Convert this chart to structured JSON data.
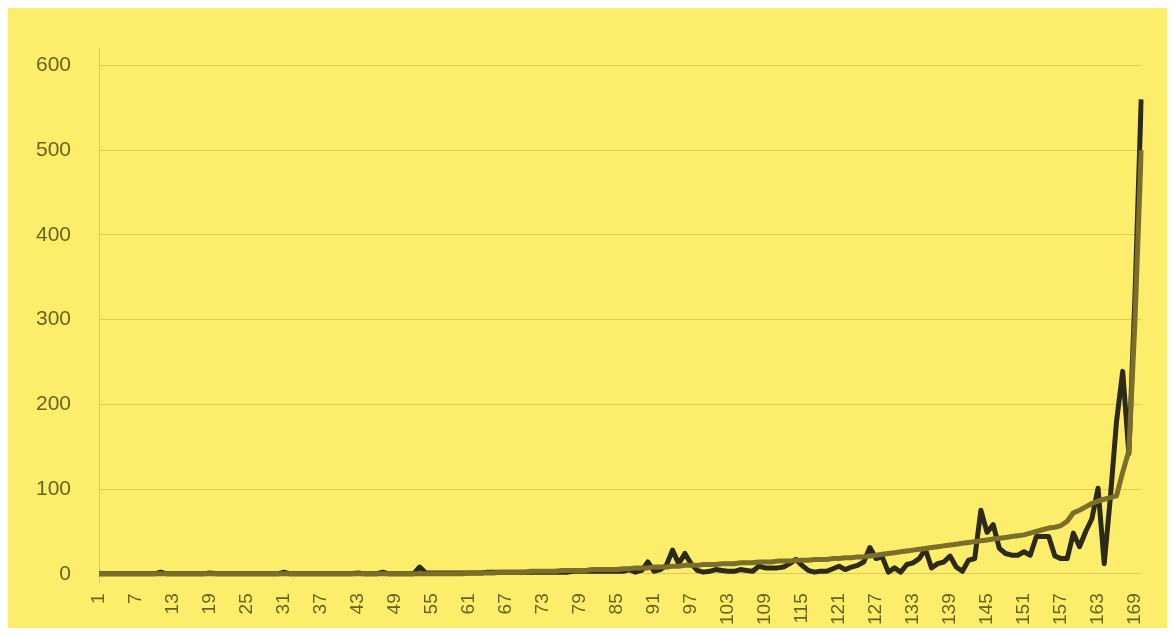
{
  "chart_data": {
    "type": "line",
    "categories": [
      "1",
      null,
      null,
      null,
      null,
      null,
      "7",
      null,
      null,
      null,
      null,
      null,
      "13",
      null,
      null,
      null,
      null,
      null,
      "19",
      null,
      null,
      null,
      null,
      null,
      "25",
      null,
      null,
      null,
      null,
      null,
      "31",
      null,
      null,
      null,
      null,
      null,
      "37",
      null,
      null,
      null,
      null,
      null,
      "43",
      null,
      null,
      null,
      null,
      null,
      "49",
      null,
      null,
      null,
      null,
      null,
      "55",
      null,
      null,
      null,
      null,
      null,
      "61",
      null,
      null,
      null,
      null,
      null,
      "67",
      null,
      null,
      null,
      null,
      null,
      "73",
      null,
      null,
      null,
      null,
      null,
      "79",
      null,
      null,
      null,
      null,
      null,
      "85",
      null,
      null,
      null,
      null,
      null,
      "91",
      null,
      null,
      null,
      null,
      null,
      "97",
      null,
      null,
      null,
      null,
      null,
      "103",
      null,
      null,
      null,
      null,
      null,
      "109",
      null,
      null,
      null,
      null,
      null,
      "115",
      null,
      null,
      null,
      null,
      null,
      "121",
      null,
      null,
      null,
      null,
      null,
      "127",
      null,
      null,
      null,
      null,
      null,
      "133",
      null,
      null,
      null,
      null,
      null,
      "139",
      null,
      null,
      null,
      null,
      null,
      "145",
      null,
      null,
      null,
      null,
      null,
      "151",
      null,
      null,
      null,
      null,
      null,
      "157",
      null,
      null,
      null,
      null,
      null,
      "163",
      null,
      null,
      null,
      null,
      null,
      "169",
      null
    ],
    "series": [
      {
        "color": "#2e2a1a",
        "values": [
          0,
          0,
          0,
          0,
          0,
          0,
          0,
          0,
          0,
          0,
          2,
          0,
          0,
          0,
          0,
          0,
          0,
          0,
          1,
          0,
          0,
          0,
          0,
          0,
          0,
          0,
          0,
          0,
          0,
          0,
          2,
          0,
          0,
          0,
          0,
          0,
          0,
          0,
          0,
          0,
          0,
          0,
          1,
          0,
          0,
          0,
          2,
          0,
          0,
          0,
          0,
          0,
          8,
          1,
          1,
          1,
          1,
          1,
          1,
          1,
          1,
          1,
          1,
          2,
          2,
          2,
          2,
          2,
          2,
          2,
          2,
          2,
          2,
          2,
          2,
          2,
          2,
          3,
          3,
          3,
          3,
          3,
          3,
          3,
          3,
          3,
          5,
          2,
          4,
          14,
          3,
          5,
          10,
          28,
          12,
          24,
          12,
          4,
          2,
          3,
          5,
          4,
          3,
          3,
          5,
          4,
          3,
          9,
          7,
          7,
          7,
          8,
          12,
          17,
          10,
          4,
          2,
          3,
          3,
          6,
          9,
          5,
          8,
          10,
          14,
          31,
          18,
          20,
          2,
          7,
          2,
          11,
          13,
          18,
          29,
          7,
          12,
          14,
          21,
          8,
          3,
          16,
          18,
          75,
          49,
          58,
          30,
          24,
          22,
          22,
          26,
          22,
          44,
          44,
          44,
          21,
          18,
          18,
          48,
          32,
          50,
          65,
          101,
          12,
          90,
          180,
          239,
          142,
          330,
          560
        ]
      },
      {
        "color": "#7a6e2a",
        "values": [
          0,
          0,
          0,
          0,
          0,
          0,
          0,
          0,
          0,
          0,
          0,
          0,
          0,
          0,
          0,
          0,
          0,
          0,
          0,
          0,
          0,
          0,
          0,
          0,
          0,
          0,
          0,
          0,
          0,
          0,
          0,
          0,
          0,
          0,
          0,
          0,
          0,
          0,
          0,
          0,
          0,
          0,
          0,
          0,
          0,
          0,
          0,
          0,
          0,
          0,
          0,
          0,
          0,
          0,
          0,
          0,
          0,
          0,
          0,
          0,
          1,
          1,
          1,
          1,
          1,
          2,
          2,
          2,
          2,
          2,
          3,
          3,
          3,
          3,
          3,
          4,
          4,
          4,
          4,
          4,
          5,
          5,
          5,
          5,
          5,
          6,
          6,
          7,
          7,
          7,
          8,
          8,
          8,
          9,
          9,
          10,
          10,
          10,
          11,
          11,
          11,
          12,
          12,
          12,
          13,
          13,
          13,
          14,
          14,
          14,
          15,
          15,
          15,
          16,
          16,
          16,
          17,
          17,
          17,
          18,
          18,
          19,
          19,
          20,
          20,
          21,
          22,
          23,
          24,
          25,
          26,
          27,
          28,
          29,
          30,
          31,
          32,
          33,
          34,
          35,
          36,
          37,
          38,
          39,
          40,
          41,
          42,
          43,
          44,
          45,
          46,
          48,
          50,
          52,
          54,
          55,
          57,
          62,
          72,
          75,
          79,
          83,
          86,
          88,
          90,
          92,
          120,
          145,
          300,
          500
        ]
      }
    ],
    "ylim": [
      -10,
      620
    ],
    "yticks": [
      0,
      100,
      200,
      300,
      400,
      500,
      600
    ],
    "grid": "y",
    "legend": false
  }
}
